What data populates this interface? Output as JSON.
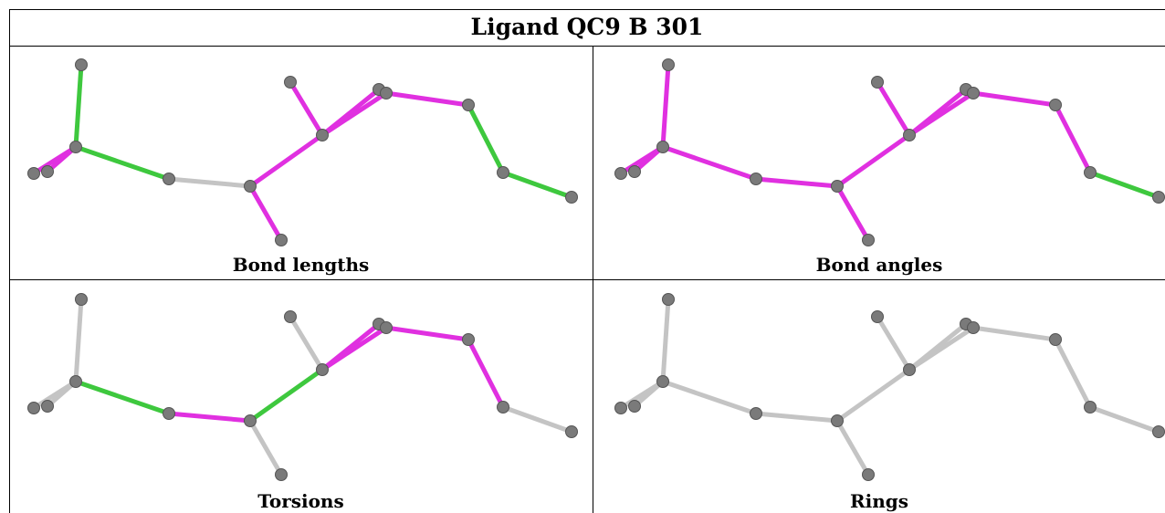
{
  "title": "Ligand QC9 B 301",
  "panels": [
    {
      "caption": "Bond lengths",
      "bond_colors": [
        "green",
        "magenta",
        "magenta",
        "green",
        "gray",
        "magenta",
        "magenta",
        "magenta",
        "magenta",
        "magenta",
        "magenta",
        "green",
        "green"
      ]
    },
    {
      "caption": "Bond angles",
      "bond_colors": [
        "magenta",
        "magenta",
        "magenta",
        "magenta",
        "magenta",
        "magenta",
        "magenta",
        "magenta",
        "magenta",
        "magenta",
        "magenta",
        "magenta",
        "green"
      ]
    },
    {
      "caption": "Torsions",
      "bond_colors": [
        "gray",
        "gray",
        "gray",
        "green",
        "magenta",
        "gray",
        "green",
        "gray",
        "magenta",
        "magenta",
        "magenta",
        "magenta",
        "gray"
      ]
    },
    {
      "caption": "Rings",
      "bond_colors": [
        "gray",
        "gray",
        "gray",
        "gray",
        "gray",
        "gray",
        "gray",
        "gray",
        "gray",
        "gray",
        "gray",
        "gray",
        "gray"
      ]
    }
  ],
  "colors": {
    "green": "#3ec83e",
    "magenta": "#e030e0",
    "gray": "#c4c4c4",
    "atom": "#7a7a7a"
  }
}
